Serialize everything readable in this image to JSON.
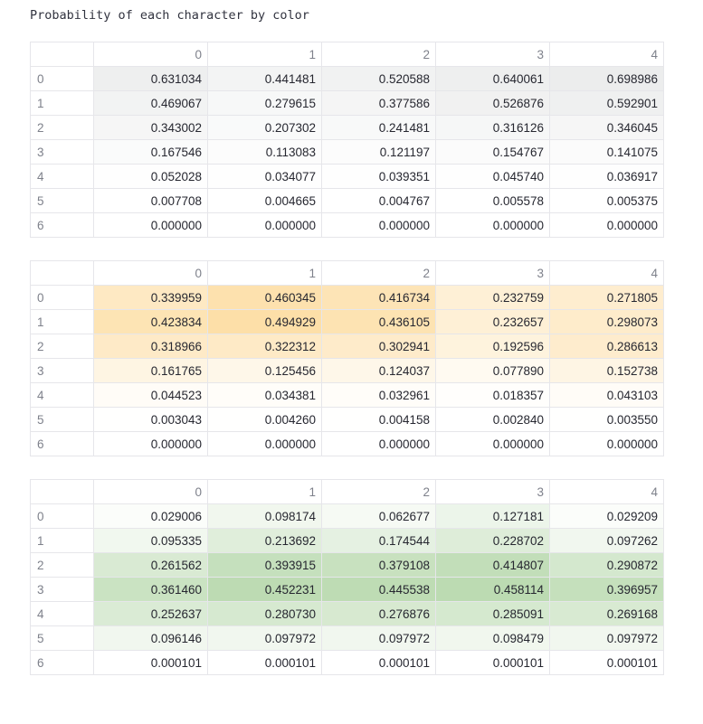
{
  "caption": "Probability of each character by color",
  "tables": [
    {
      "name": "gray",
      "columns": [
        "0",
        "1",
        "2",
        "3",
        "4"
      ],
      "rows": [
        {
          "index": "0",
          "values": [
            "0.631034",
            "0.441481",
            "0.520588",
            "0.640061",
            "0.698986"
          ]
        },
        {
          "index": "1",
          "values": [
            "0.469067",
            "0.279615",
            "0.377586",
            "0.526876",
            "0.592901"
          ]
        },
        {
          "index": "2",
          "values": [
            "0.343002",
            "0.207302",
            "0.241481",
            "0.316126",
            "0.346045"
          ]
        },
        {
          "index": "3",
          "values": [
            "0.167546",
            "0.113083",
            "0.121197",
            "0.154767",
            "0.141075"
          ]
        },
        {
          "index": "4",
          "values": [
            "0.052028",
            "0.034077",
            "0.039351",
            "0.045740",
            "0.036917"
          ]
        },
        {
          "index": "5",
          "values": [
            "0.007708",
            "0.004665",
            "0.004767",
            "0.005578",
            "0.005375"
          ]
        },
        {
          "index": "6",
          "values": [
            "0.000000",
            "0.000000",
            "0.000000",
            "0.000000",
            "0.000000"
          ]
        }
      ],
      "colors": {
        "low": "#ffffff",
        "high": "#eceded",
        "max": 0.698986
      }
    },
    {
      "name": "yellow",
      "columns": [
        "0",
        "1",
        "2",
        "3",
        "4"
      ],
      "rows": [
        {
          "index": "0",
          "values": [
            "0.339959",
            "0.460345",
            "0.416734",
            "0.232759",
            "0.271805"
          ]
        },
        {
          "index": "1",
          "values": [
            "0.423834",
            "0.494929",
            "0.436105",
            "0.232657",
            "0.298073"
          ]
        },
        {
          "index": "2",
          "values": [
            "0.318966",
            "0.322312",
            "0.302941",
            "0.192596",
            "0.286613"
          ]
        },
        {
          "index": "3",
          "values": [
            "0.161765",
            "0.125456",
            "0.124037",
            "0.077890",
            "0.152738"
          ]
        },
        {
          "index": "4",
          "values": [
            "0.044523",
            "0.034381",
            "0.032961",
            "0.018357",
            "0.043103"
          ]
        },
        {
          "index": "5",
          "values": [
            "0.003043",
            "0.004260",
            "0.004158",
            "0.002840",
            "0.003550"
          ]
        },
        {
          "index": "6",
          "values": [
            "0.000000",
            "0.000000",
            "0.000000",
            "0.000000",
            "0.000000"
          ]
        }
      ],
      "colors": {
        "low": "#ffffff",
        "high": "#fddfa8",
        "max": 0.494929
      }
    },
    {
      "name": "green",
      "columns": [
        "0",
        "1",
        "2",
        "3",
        "4"
      ],
      "rows": [
        {
          "index": "0",
          "values": [
            "0.029006",
            "0.098174",
            "0.062677",
            "0.127181",
            "0.029209"
          ]
        },
        {
          "index": "1",
          "values": [
            "0.095335",
            "0.213692",
            "0.174544",
            "0.228702",
            "0.097262"
          ]
        },
        {
          "index": "2",
          "values": [
            "0.261562",
            "0.393915",
            "0.379108",
            "0.414807",
            "0.290872"
          ]
        },
        {
          "index": "3",
          "values": [
            "0.361460",
            "0.452231",
            "0.445538",
            "0.458114",
            "0.396957"
          ]
        },
        {
          "index": "4",
          "values": [
            "0.252637",
            "0.280730",
            "0.276876",
            "0.285091",
            "0.269168"
          ]
        },
        {
          "index": "5",
          "values": [
            "0.096146",
            "0.097972",
            "0.097972",
            "0.098479",
            "0.097972"
          ]
        },
        {
          "index": "6",
          "values": [
            "0.000101",
            "0.000101",
            "0.000101",
            "0.000101",
            "0.000101"
          ]
        }
      ],
      "colors": {
        "low": "#ffffff",
        "high": "#bcdbb2",
        "max": 0.458114
      }
    }
  ]
}
